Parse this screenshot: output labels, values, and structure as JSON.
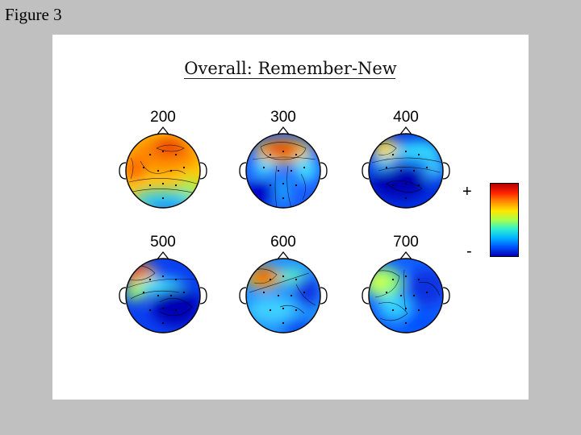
{
  "figure_label": "Figure 3",
  "title": "Overall: Remember-New",
  "maps": [
    {
      "label": "200"
    },
    {
      "label": "300"
    },
    {
      "label": "400"
    },
    {
      "label": "500"
    },
    {
      "label": "600"
    },
    {
      "label": "700"
    }
  ],
  "colorbar": {
    "plus_label": "+",
    "minus_label": "-",
    "colors": [
      "#b40000",
      "#ff2000",
      "#ff8c00",
      "#ffe600",
      "#a8ff4a",
      "#2ef0d0",
      "#00b4ff",
      "#0050ff",
      "#0000b0"
    ]
  }
}
